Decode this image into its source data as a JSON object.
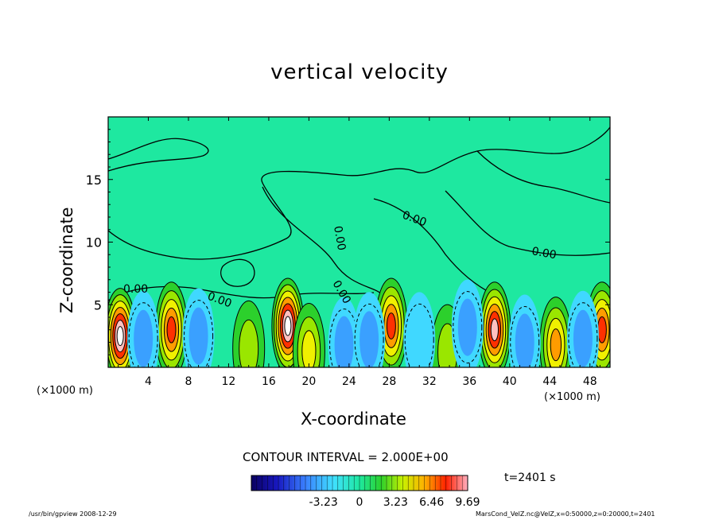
{
  "chart_data": {
    "type": "heatmap",
    "title": "vertical velocity",
    "xlabel": "X-coordinate",
    "ylabel": "Z-coordinate",
    "x_unit_label": "(×1000 m)",
    "y_unit_label": "(×1000 m)",
    "xlim": [
      0,
      50
    ],
    "ylim": [
      0,
      20
    ],
    "x_ticks": [
      "4",
      "8",
      "12",
      "16",
      "20",
      "24",
      "28",
      "32",
      "36",
      "40",
      "44",
      "48"
    ],
    "x_tick_values": [
      4,
      8,
      12,
      16,
      20,
      24,
      28,
      32,
      36,
      40,
      44,
      48
    ],
    "y_ticks": [
      "5",
      "10",
      "15"
    ],
    "y_tick_values": [
      5,
      10,
      15
    ],
    "contour_labels": [
      "0.00",
      "0.00",
      "0.00",
      "0.00",
      "0.00",
      "0.00"
    ],
    "contour_interval_text": "CONTOUR INTERVAL = 2.000E+00",
    "colorbar": {
      "tick_labels": [
        "-3.23",
        "0",
        "3.23",
        "6.46",
        "9.69"
      ],
      "tick_values": [
        -3.23,
        0,
        3.23,
        6.46,
        9.69
      ],
      "range": [
        -9.69,
        9.69
      ]
    },
    "grid": false,
    "cells": [
      {
        "x": 1.2,
        "z": 2.5,
        "value": 9.5
      },
      {
        "x": 6.3,
        "z": 3.0,
        "value": 7.0
      },
      {
        "x": 17.9,
        "z": 3.3,
        "value": 9.5
      },
      {
        "x": 28.2,
        "z": 3.3,
        "value": 7.5
      },
      {
        "x": 38.5,
        "z": 3.0,
        "value": 8.0
      },
      {
        "x": 49.2,
        "z": 3.0,
        "value": 6.5
      },
      {
        "x": 44.6,
        "z": 1.8,
        "value": 5.0
      },
      {
        "x": 14.0,
        "z": 1.5,
        "value": 3.0
      },
      {
        "x": 20.0,
        "z": 1.3,
        "value": 3.5
      },
      {
        "x": 33.8,
        "z": 1.2,
        "value": 3.0
      },
      {
        "x": 3.5,
        "z": 2.3,
        "value": -4.0
      },
      {
        "x": 9.0,
        "z": 2.5,
        "value": -3.0
      },
      {
        "x": 23.5,
        "z": 1.8,
        "value": -3.5
      },
      {
        "x": 26.0,
        "z": 2.2,
        "value": -3.0
      },
      {
        "x": 31.0,
        "z": 2.2,
        "value": -2.5
      },
      {
        "x": 35.8,
        "z": 3.2,
        "value": -4.5
      },
      {
        "x": 41.5,
        "z": 2.0,
        "value": -3.5
      },
      {
        "x": 47.3,
        "z": 2.3,
        "value": -3.5
      }
    ]
  },
  "time_label": "t=2401 s",
  "footer_left": "/usr/bin/gpview   2008-12-29",
  "footer_right": "MarsCond_VelZ.nc@VelZ,x=0:50000,z=0:20000,t=2401",
  "colors": {
    "field_background": "#1ee8a0",
    "positive_scale": [
      "#1ee8a0",
      "#2cd02c",
      "#9ae600",
      "#f0f000",
      "#ff9c00",
      "#ff3000",
      "#ffc0c0",
      "#ffffff"
    ],
    "negative_scale": [
      "#1ee8a0",
      "#40d8ff",
      "#3aa0ff",
      "#2050f0",
      "#1010b0",
      "#080060"
    ]
  }
}
